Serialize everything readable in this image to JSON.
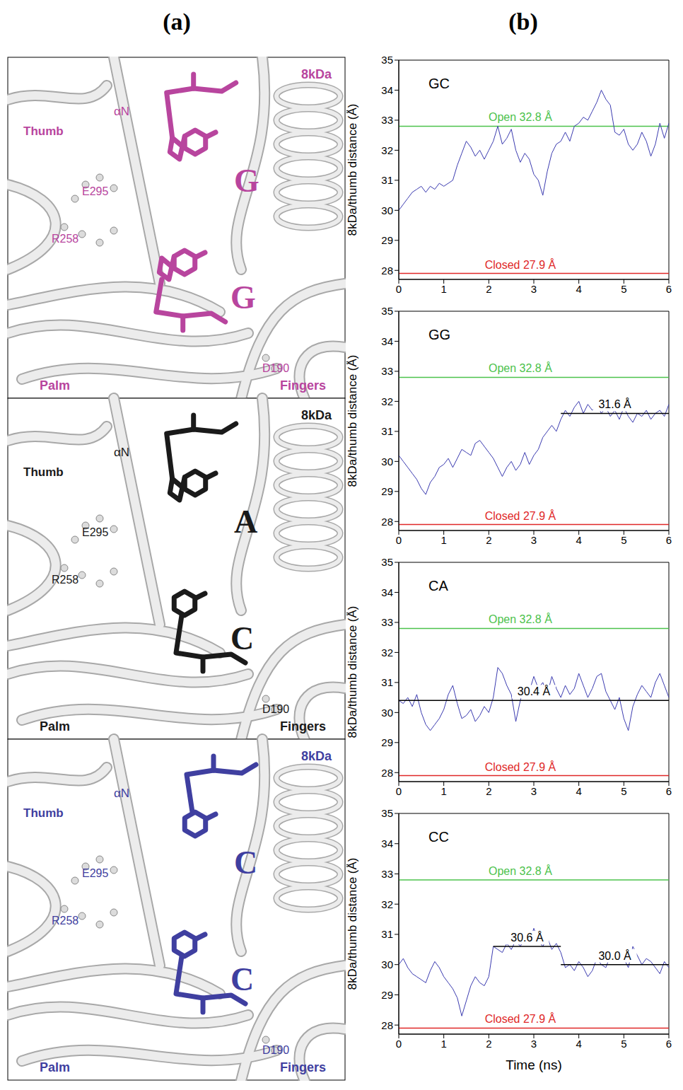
{
  "panel_labels": [
    "(a)",
    "(b)"
  ],
  "structures": [
    {
      "color": "#b8459e",
      "bases": [
        "G",
        "G"
      ],
      "labels": [
        "Thumb",
        "αN",
        "E295",
        "R258",
        "D190",
        "Palm",
        "Fingers",
        "8kDa"
      ]
    },
    {
      "color": "#1a1a1a",
      "bases": [
        "A",
        "C"
      ],
      "labels": [
        "Thumb",
        "αN",
        "E295",
        "R258",
        "D190",
        "Palm",
        "Fingers",
        "8kDa"
      ]
    },
    {
      "color": "#3f3fa0",
      "bases": [
        "C",
        "C"
      ],
      "labels": [
        "Thumb",
        "αN",
        "E295",
        "R258",
        "D190",
        "Palm",
        "Fingers",
        "8kDa"
      ]
    }
  ],
  "chart_data": [
    {
      "type": "line",
      "title": "GC",
      "ylabel": "8kDa/thumb distance (Å)",
      "color": "#3b3bb0",
      "x": [
        0,
        0.1,
        0.2,
        0.3,
        0.4,
        0.5,
        0.6,
        0.7,
        0.8,
        0.9,
        1,
        1.1,
        1.2,
        1.3,
        1.4,
        1.5,
        1.6,
        1.7,
        1.8,
        1.9,
        2,
        2.1,
        2.2,
        2.3,
        2.4,
        2.5,
        2.6,
        2.7,
        2.8,
        2.9,
        3,
        3.1,
        3.2,
        3.3,
        3.4,
        3.5,
        3.6,
        3.7,
        3.8,
        3.9,
        4,
        4.1,
        4.2,
        4.3,
        4.4,
        4.5,
        4.6,
        4.7,
        4.8,
        4.9,
        5,
        5.1,
        5.2,
        5.3,
        5.4,
        5.5,
        5.6,
        5.7,
        5.8,
        5.9,
        6
      ],
      "values": [
        30.0,
        30.2,
        30.4,
        30.6,
        30.7,
        30.8,
        30.6,
        30.8,
        30.7,
        30.9,
        30.8,
        30.9,
        31.0,
        31.5,
        31.9,
        32.3,
        32.1,
        31.8,
        32.0,
        31.7,
        32.0,
        32.3,
        32.8,
        32.2,
        32.4,
        32.7,
        32.0,
        31.6,
        31.9,
        31.7,
        31.2,
        31.0,
        30.5,
        31.3,
        31.9,
        32.2,
        32.3,
        32.6,
        32.3,
        32.8,
        32.9,
        33.1,
        33.0,
        33.3,
        33.6,
        34.0,
        33.7,
        33.5,
        32.6,
        32.5,
        32.7,
        32.2,
        32.0,
        32.2,
        32.6,
        32.3,
        31.8,
        32.2,
        32.9,
        32.4,
        32.9
      ],
      "xlim": [
        0,
        6
      ],
      "xticks": [
        0,
        1,
        2,
        3,
        4,
        5,
        6
      ],
      "ylim": [
        27.7,
        35
      ],
      "yticks": [
        28,
        29,
        30,
        31,
        32,
        33,
        34,
        35
      ],
      "reference_lines": [
        {
          "value": 32.8,
          "label": "Open 32.8 Å",
          "color": "#4cc24c"
        },
        {
          "value": 27.9,
          "label": "Closed 27.9 Å",
          "color": "#e02828"
        }
      ],
      "segments": []
    },
    {
      "type": "line",
      "title": "GG",
      "ylabel": "8kDa/thumb distance (Å)",
      "color": "#3b3bb0",
      "x": [
        0,
        0.1,
        0.2,
        0.3,
        0.4,
        0.5,
        0.6,
        0.7,
        0.8,
        0.9,
        1,
        1.1,
        1.2,
        1.3,
        1.4,
        1.5,
        1.6,
        1.7,
        1.8,
        1.9,
        2,
        2.1,
        2.2,
        2.3,
        2.4,
        2.5,
        2.6,
        2.7,
        2.8,
        2.9,
        3,
        3.1,
        3.2,
        3.3,
        3.4,
        3.5,
        3.6,
        3.7,
        3.8,
        3.9,
        4,
        4.1,
        4.2,
        4.3,
        4.4,
        4.5,
        4.6,
        4.7,
        4.8,
        4.9,
        5,
        5.1,
        5.2,
        5.3,
        5.4,
        5.5,
        5.6,
        5.7,
        5.8,
        5.9,
        6
      ],
      "values": [
        30.2,
        30.0,
        29.8,
        29.6,
        29.4,
        29.1,
        28.9,
        29.3,
        29.5,
        29.8,
        29.9,
        30.1,
        29.8,
        30.1,
        30.4,
        30.3,
        30.2,
        30.6,
        30.7,
        30.5,
        30.3,
        30.1,
        29.8,
        29.5,
        29.8,
        30.0,
        29.7,
        29.9,
        30.3,
        29.9,
        30.2,
        30.4,
        30.8,
        31.0,
        31.2,
        31.0,
        31.4,
        31.7,
        31.5,
        31.8,
        32.0,
        31.6,
        31.9,
        31.7,
        31.9,
        31.6,
        31.8,
        31.5,
        31.7,
        31.4,
        31.8,
        31.5,
        31.3,
        31.6,
        31.5,
        31.7,
        31.4,
        31.6,
        31.7,
        31.5,
        31.9
      ],
      "xlim": [
        0,
        6
      ],
      "xticks": [
        0,
        1,
        2,
        3,
        4,
        5,
        6
      ],
      "ylim": [
        27.7,
        35
      ],
      "yticks": [
        28,
        29,
        30,
        31,
        32,
        33,
        34,
        35
      ],
      "reference_lines": [
        {
          "value": 32.8,
          "label": "Open 32.8 Å",
          "color": "#4cc24c"
        },
        {
          "value": 27.9,
          "label": "Closed 27.9 Å",
          "color": "#e02828"
        }
      ],
      "segments": [
        {
          "value": 31.6,
          "x": [
            3.6,
            6
          ],
          "label": "31.6 Å"
        }
      ]
    },
    {
      "type": "line",
      "title": "CA",
      "ylabel": "8kDa/thumb distance (Å)",
      "color": "#3b3bb0",
      "x": [
        0,
        0.1,
        0.2,
        0.3,
        0.4,
        0.5,
        0.6,
        0.7,
        0.8,
        0.9,
        1,
        1.1,
        1.2,
        1.3,
        1.4,
        1.5,
        1.6,
        1.7,
        1.8,
        1.9,
        2,
        2.1,
        2.2,
        2.3,
        2.4,
        2.5,
        2.6,
        2.7,
        2.8,
        2.9,
        3,
        3.1,
        3.2,
        3.3,
        3.4,
        3.5,
        3.6,
        3.7,
        3.8,
        3.9,
        4,
        4.1,
        4.2,
        4.3,
        4.4,
        4.5,
        4.6,
        4.7,
        4.8,
        4.9,
        5,
        5.1,
        5.2,
        5.3,
        5.4,
        5.5,
        5.6,
        5.7,
        5.8,
        5.9,
        6
      ],
      "values": [
        30.4,
        30.3,
        30.5,
        30.2,
        30.6,
        30.0,
        29.6,
        29.4,
        29.6,
        29.8,
        30.1,
        30.6,
        30.9,
        30.3,
        29.8,
        29.9,
        30.1,
        29.7,
        29.9,
        30.2,
        30.0,
        30.5,
        31.5,
        31.3,
        30.9,
        30.6,
        29.7,
        30.4,
        30.9,
        30.7,
        31.2,
        30.8,
        31.0,
        30.6,
        31.2,
        30.8,
        30.5,
        30.9,
        30.6,
        30.8,
        31.3,
        30.9,
        30.5,
        30.8,
        31.2,
        31.3,
        30.7,
        30.4,
        30.1,
        30.5,
        29.8,
        29.4,
        30.2,
        30.6,
        30.9,
        30.7,
        30.5,
        31.0,
        31.3,
        30.9,
        30.5
      ],
      "xlim": [
        0,
        6
      ],
      "xticks": [
        0,
        1,
        2,
        3,
        4,
        5,
        6
      ],
      "ylim": [
        27.7,
        35
      ],
      "yticks": [
        28,
        29,
        30,
        31,
        32,
        33,
        34,
        35
      ],
      "reference_lines": [
        {
          "value": 32.8,
          "label": "Open 32.8 Å",
          "color": "#4cc24c"
        },
        {
          "value": 27.9,
          "label": "Closed 27.9 Å",
          "color": "#e02828"
        }
      ],
      "segments": [
        {
          "value": 30.4,
          "x": [
            0,
            6
          ],
          "label": "30.4 Å"
        }
      ]
    },
    {
      "type": "line",
      "title": "CC",
      "xlabel": "Time (ns)",
      "ylabel": "8kDa/thumb distance (Å)",
      "color": "#3b3bb0",
      "x": [
        0,
        0.1,
        0.2,
        0.3,
        0.4,
        0.5,
        0.6,
        0.7,
        0.8,
        0.9,
        1,
        1.1,
        1.2,
        1.3,
        1.4,
        1.5,
        1.6,
        1.7,
        1.8,
        1.9,
        2,
        2.1,
        2.2,
        2.3,
        2.4,
        2.5,
        2.6,
        2.7,
        2.8,
        2.9,
        3,
        3.1,
        3.2,
        3.3,
        3.4,
        3.5,
        3.6,
        3.7,
        3.8,
        3.9,
        4,
        4.1,
        4.2,
        4.3,
        4.4,
        4.5,
        4.6,
        4.7,
        4.8,
        4.9,
        5,
        5.1,
        5.2,
        5.3,
        5.4,
        5.5,
        5.6,
        5.7,
        5.8,
        5.9,
        6
      ],
      "values": [
        30.0,
        30.2,
        29.9,
        29.7,
        29.6,
        29.5,
        29.4,
        29.8,
        30.1,
        29.9,
        29.6,
        29.4,
        29.2,
        28.9,
        28.3,
        28.8,
        29.3,
        29.6,
        29.4,
        29.3,
        29.6,
        30.6,
        30.5,
        30.4,
        30.7,
        30.5,
        30.8,
        30.6,
        30.9,
        30.7,
        31.2,
        30.8,
        30.6,
        30.9,
        30.5,
        30.7,
        30.4,
        29.9,
        30.0,
        29.8,
        30.1,
        29.9,
        29.6,
        29.8,
        30.2,
        30.0,
        29.9,
        30.3,
        30.1,
        30.5,
        30.2,
        29.9,
        30.6,
        30.3,
        30.0,
        30.2,
        30.1,
        29.9,
        29.7,
        30.1,
        29.9
      ],
      "xlim": [
        0,
        6
      ],
      "xticks": [
        0,
        1,
        2,
        3,
        4,
        5,
        6
      ],
      "ylim": [
        27.7,
        35
      ],
      "yticks": [
        28,
        29,
        30,
        31,
        32,
        33,
        34,
        35
      ],
      "reference_lines": [
        {
          "value": 32.8,
          "label": "Open 32.8 Å",
          "color": "#4cc24c"
        },
        {
          "value": 27.9,
          "label": "Closed 27.9 Å",
          "color": "#e02828"
        }
      ],
      "segments": [
        {
          "value": 30.6,
          "x": [
            2.1,
            3.6
          ],
          "label": "30.6 Å"
        },
        {
          "value": 30.0,
          "x": [
            3.6,
            6
          ],
          "label": "30.0 Å"
        }
      ]
    }
  ]
}
